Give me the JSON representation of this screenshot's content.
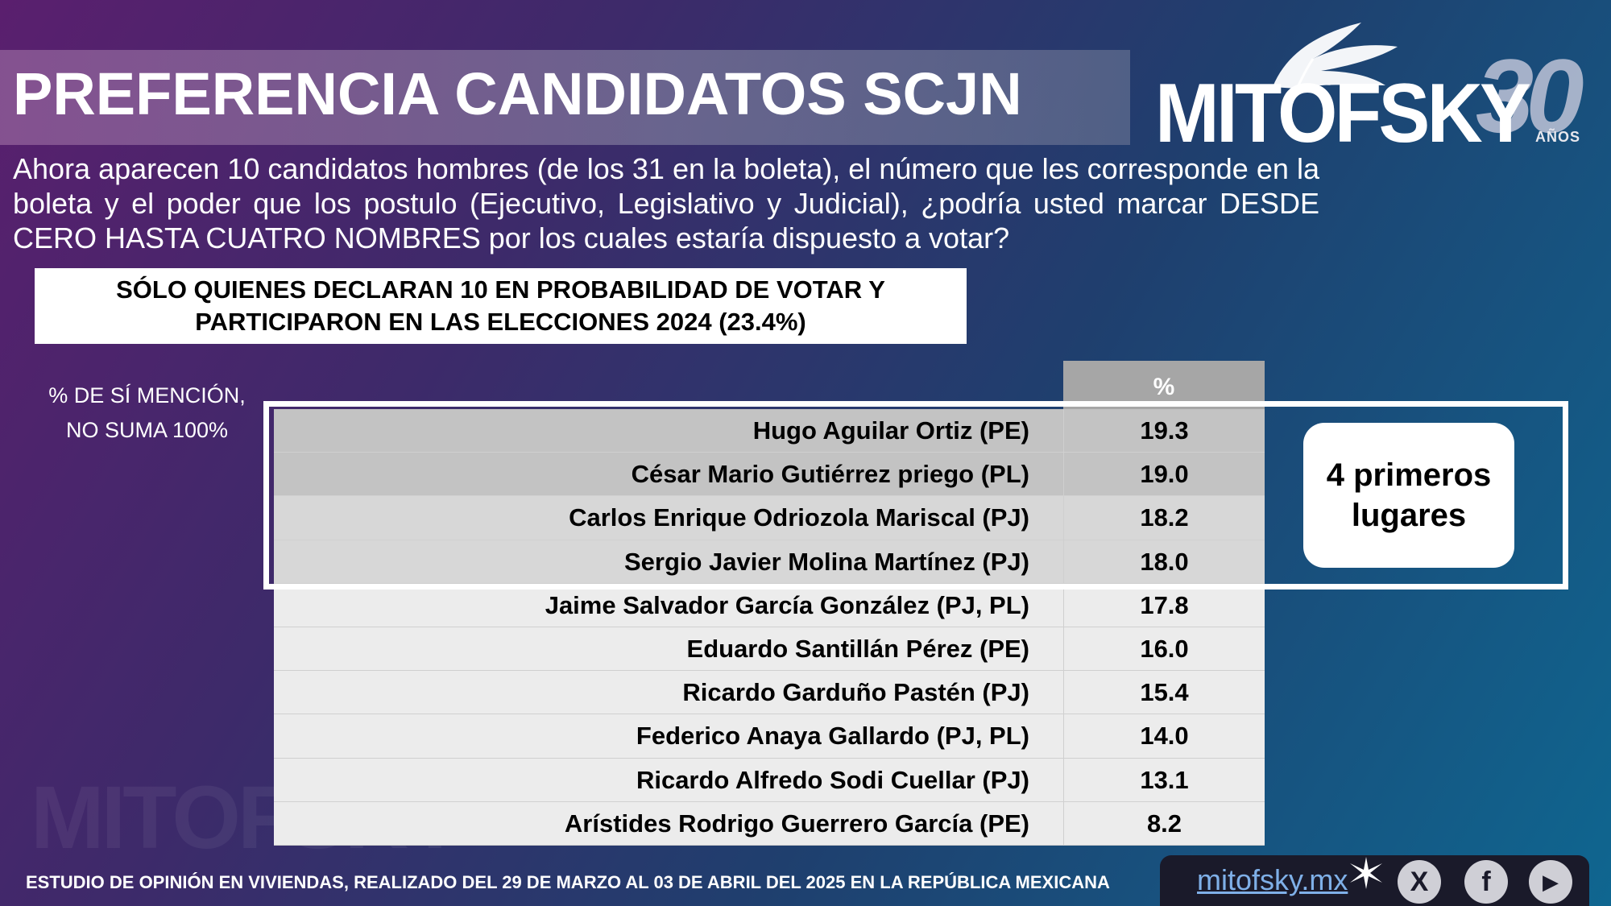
{
  "header": {
    "title": "PREFERENCIA CANDIDATOS SCJN",
    "logo_text": "MITOFSKY",
    "logo_number": "30",
    "logo_sub": "AÑOS"
  },
  "question": "Ahora aparecen 10 candidatos hombres (de los 31 en la boleta), el número que les corresponde en la boleta y el poder que los postulo (Ejecutivo, Legislativo y Judicial), ¿podría usted marcar DESDE CERO HASTA CUATRO NOMBRES por los cuales estaría dispuesto a votar?",
  "filter_label": "SÓLO QUIENES  DECLARAN 10 EN PROBABILIDAD DE VOTAR Y PARTICIPARON EN LAS ELECCIONES 2024  (23.4%)",
  "note": "% DE SÍ MENCIÓN, NO SUMA 100%",
  "callout": "4 primeros lugares",
  "watermark": "MITOFSKY",
  "chart_data": {
    "type": "table",
    "columns": [
      "",
      "%"
    ],
    "categories": [
      "Hugo Aguilar Ortiz (PE)",
      "César Mario Gutiérrez priego (PL)",
      "Carlos Enrique Odriozola Mariscal (PJ)",
      "Sergio Javier Molina Martínez (PJ)",
      "Jaime Salvador García González (PJ, PL)",
      "Eduardo Santillán Pérez (PE)",
      "Ricardo Garduño Pastén (PJ)",
      "Federico Anaya Gallardo (PJ, PL)",
      "Ricardo Alfredo Sodi Cuellar (PJ)",
      "Arístides Rodrigo Guerrero García (PE)"
    ],
    "values": [
      "19.3",
      "19.0",
      "18.2",
      "18.0",
      "17.8",
      "16.0",
      "15.4",
      "14.0",
      "13.1",
      "8.2"
    ]
  },
  "footer": {
    "study": "ESTUDIO DE OPINIÓN EN VIVIENDAS, REALIZADO DEL 29 DE MARZO AL 03 DE ABRIL DEL 2025 EN LA REPÚBLICA MEXICANA",
    "site": "mitofsky.mx",
    "x_label": "X",
    "facebook_label": "f",
    "youtube_label": "▶"
  },
  "colors": {
    "highlight_dark": "#c3c3c3",
    "highlight_light": "#d7d7d7",
    "rest": "#ececec",
    "header": "#a6a6a6"
  }
}
